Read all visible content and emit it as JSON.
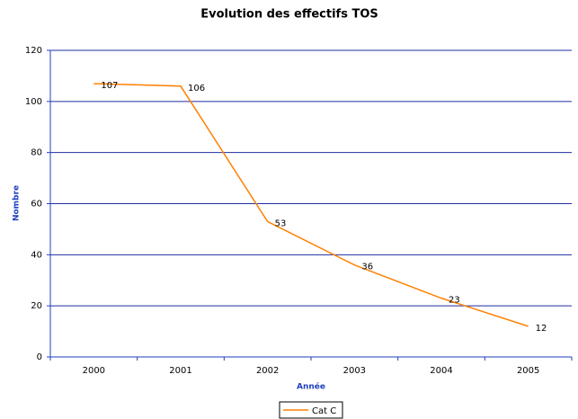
{
  "chart_data": {
    "type": "line",
    "title": "Evolution des effectifs TOS",
    "x_label": "Année",
    "y_label": "Nombre",
    "categories": [
      "2000",
      "2001",
      "2002",
      "2003",
      "2004",
      "2005"
    ],
    "series": [
      {
        "name": "Cat C",
        "color": "#ff8000",
        "values": [
          107,
          106,
          53,
          36,
          23,
          12
        ]
      }
    ],
    "ylim": [
      0,
      120
    ],
    "yticks": [
      0,
      20,
      40,
      60,
      80,
      100,
      120
    ],
    "grid": true,
    "legend": "bottom"
  }
}
